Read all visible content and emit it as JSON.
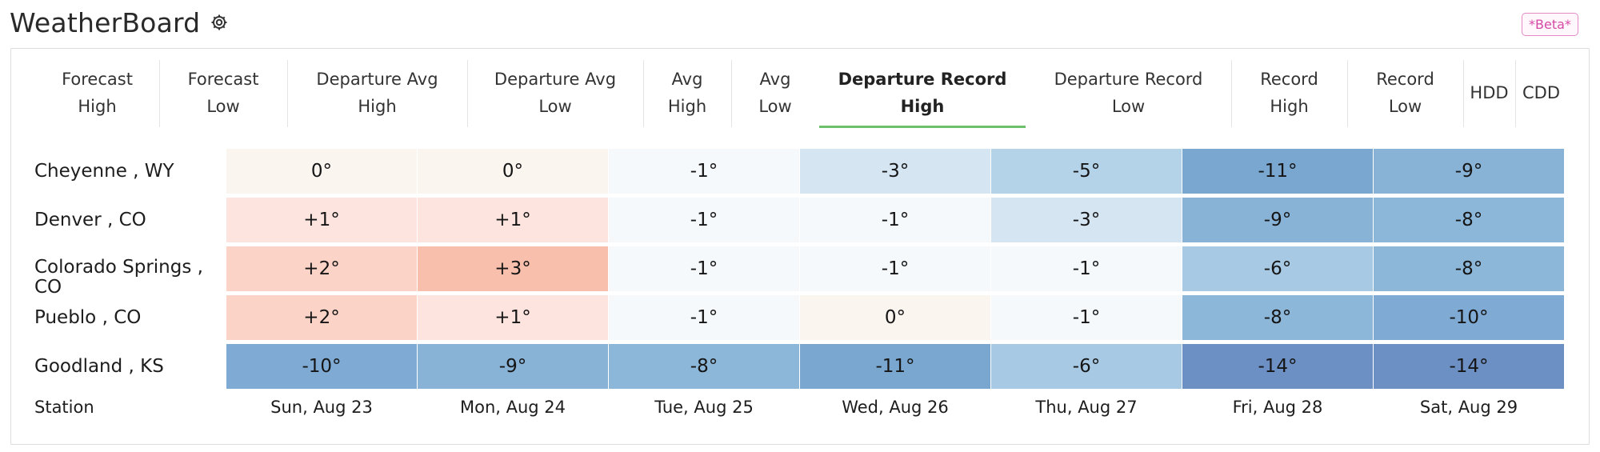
{
  "app": {
    "title": "WeatherBoard",
    "settings_icon": "gear-icon",
    "badge": "*Beta*"
  },
  "tabs": [
    {
      "label": "Forecast\nHigh",
      "active": false
    },
    {
      "label": "Forecast\nLow",
      "active": false
    },
    {
      "label": "Departure Avg\nHigh",
      "active": false
    },
    {
      "label": "Departure Avg\nLow",
      "active": false
    },
    {
      "label": "Avg\nHigh",
      "active": false
    },
    {
      "label": "Avg\nLow",
      "active": false
    },
    {
      "label": "Departure Record\nHigh",
      "active": true
    },
    {
      "label": "Departure Record\nLow",
      "active": false
    },
    {
      "label": "Record\nHigh",
      "active": false
    },
    {
      "label": "Record\nLow",
      "active": false
    },
    {
      "label": "HDD",
      "active": false
    },
    {
      "label": "CDD",
      "active": false
    }
  ],
  "table": {
    "station_header": "Station",
    "days": [
      "Sun, Aug 23",
      "Mon, Aug 24",
      "Tue, Aug 25",
      "Wed, Aug 26",
      "Thu, Aug 27",
      "Fri, Aug 28",
      "Sat, Aug 29"
    ],
    "rows": [
      {
        "station": "Cheyenne , WY",
        "values": [
          "0°",
          "0°",
          "-1°",
          "-3°",
          "-5°",
          "-11°",
          "-9°"
        ],
        "colors": [
          "#fbf5f0",
          "#fbf5f0",
          "#f5f9fc",
          "#d5e5f2",
          "#b5d3e8",
          "#7aa7d0",
          "#88b3d7"
        ]
      },
      {
        "station": "Denver , CO",
        "values": [
          "+1°",
          "+1°",
          "-1°",
          "-1°",
          "-3°",
          "-9°",
          "-8°"
        ],
        "colors": [
          "#fde4de",
          "#fde4de",
          "#f5f9fc",
          "#f5f9fc",
          "#d5e5f2",
          "#88b3d7",
          "#8db7d9"
        ]
      },
      {
        "station": "Colorado Springs , CO",
        "values": [
          "+2°",
          "+3°",
          "-1°",
          "-1°",
          "-1°",
          "-6°",
          "-8°"
        ],
        "colors": [
          "#fcd3c7",
          "#f9bfad",
          "#f5f9fc",
          "#f5f9fc",
          "#f5f9fc",
          "#a7c9e3",
          "#8db7d9"
        ]
      },
      {
        "station": "Pueblo , CO",
        "values": [
          "+2°",
          "+1°",
          "-1°",
          "0°",
          "-1°",
          "-8°",
          "-10°"
        ],
        "colors": [
          "#fcd3c7",
          "#fde4de",
          "#f5f9fc",
          "#fbf5f0",
          "#f5f9fc",
          "#8db7d9",
          "#7eaad3"
        ]
      },
      {
        "station": "Goodland , KS",
        "values": [
          "-10°",
          "-9°",
          "-8°",
          "-11°",
          "-6°",
          "-14°",
          "-14°"
        ],
        "colors": [
          "#7eaad3",
          "#88b3d7",
          "#8db7d9",
          "#7aa7d0",
          "#a7c9e3",
          "#6c8fc4",
          "#6c8fc4"
        ]
      }
    ]
  }
}
